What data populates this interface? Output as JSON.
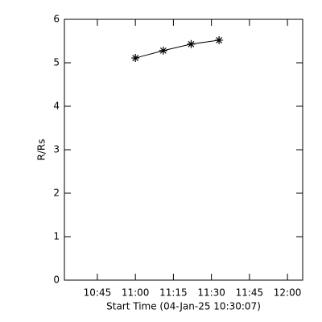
{
  "chart_data": {
    "type": "line",
    "xlabel": "Start Time (04-Jan-25 10:30:07)",
    "ylabel": "R/Rs",
    "x": [
      "11:00",
      "11:11",
      "11:22",
      "11:33"
    ],
    "series": [
      {
        "name": "R/Rs",
        "color": "#000000",
        "values": [
          5.11,
          5.28,
          5.43,
          5.52
        ]
      }
    ],
    "xlim": [
      "10:32",
      "12:06"
    ],
    "xticks": [
      "10:45",
      "11:00",
      "11:15",
      "11:30",
      "11:45",
      "12:00"
    ],
    "ylim": [
      0,
      6
    ],
    "yticks": [
      0,
      1,
      2,
      3,
      4,
      5,
      6
    ],
    "marker": "asterisk"
  }
}
